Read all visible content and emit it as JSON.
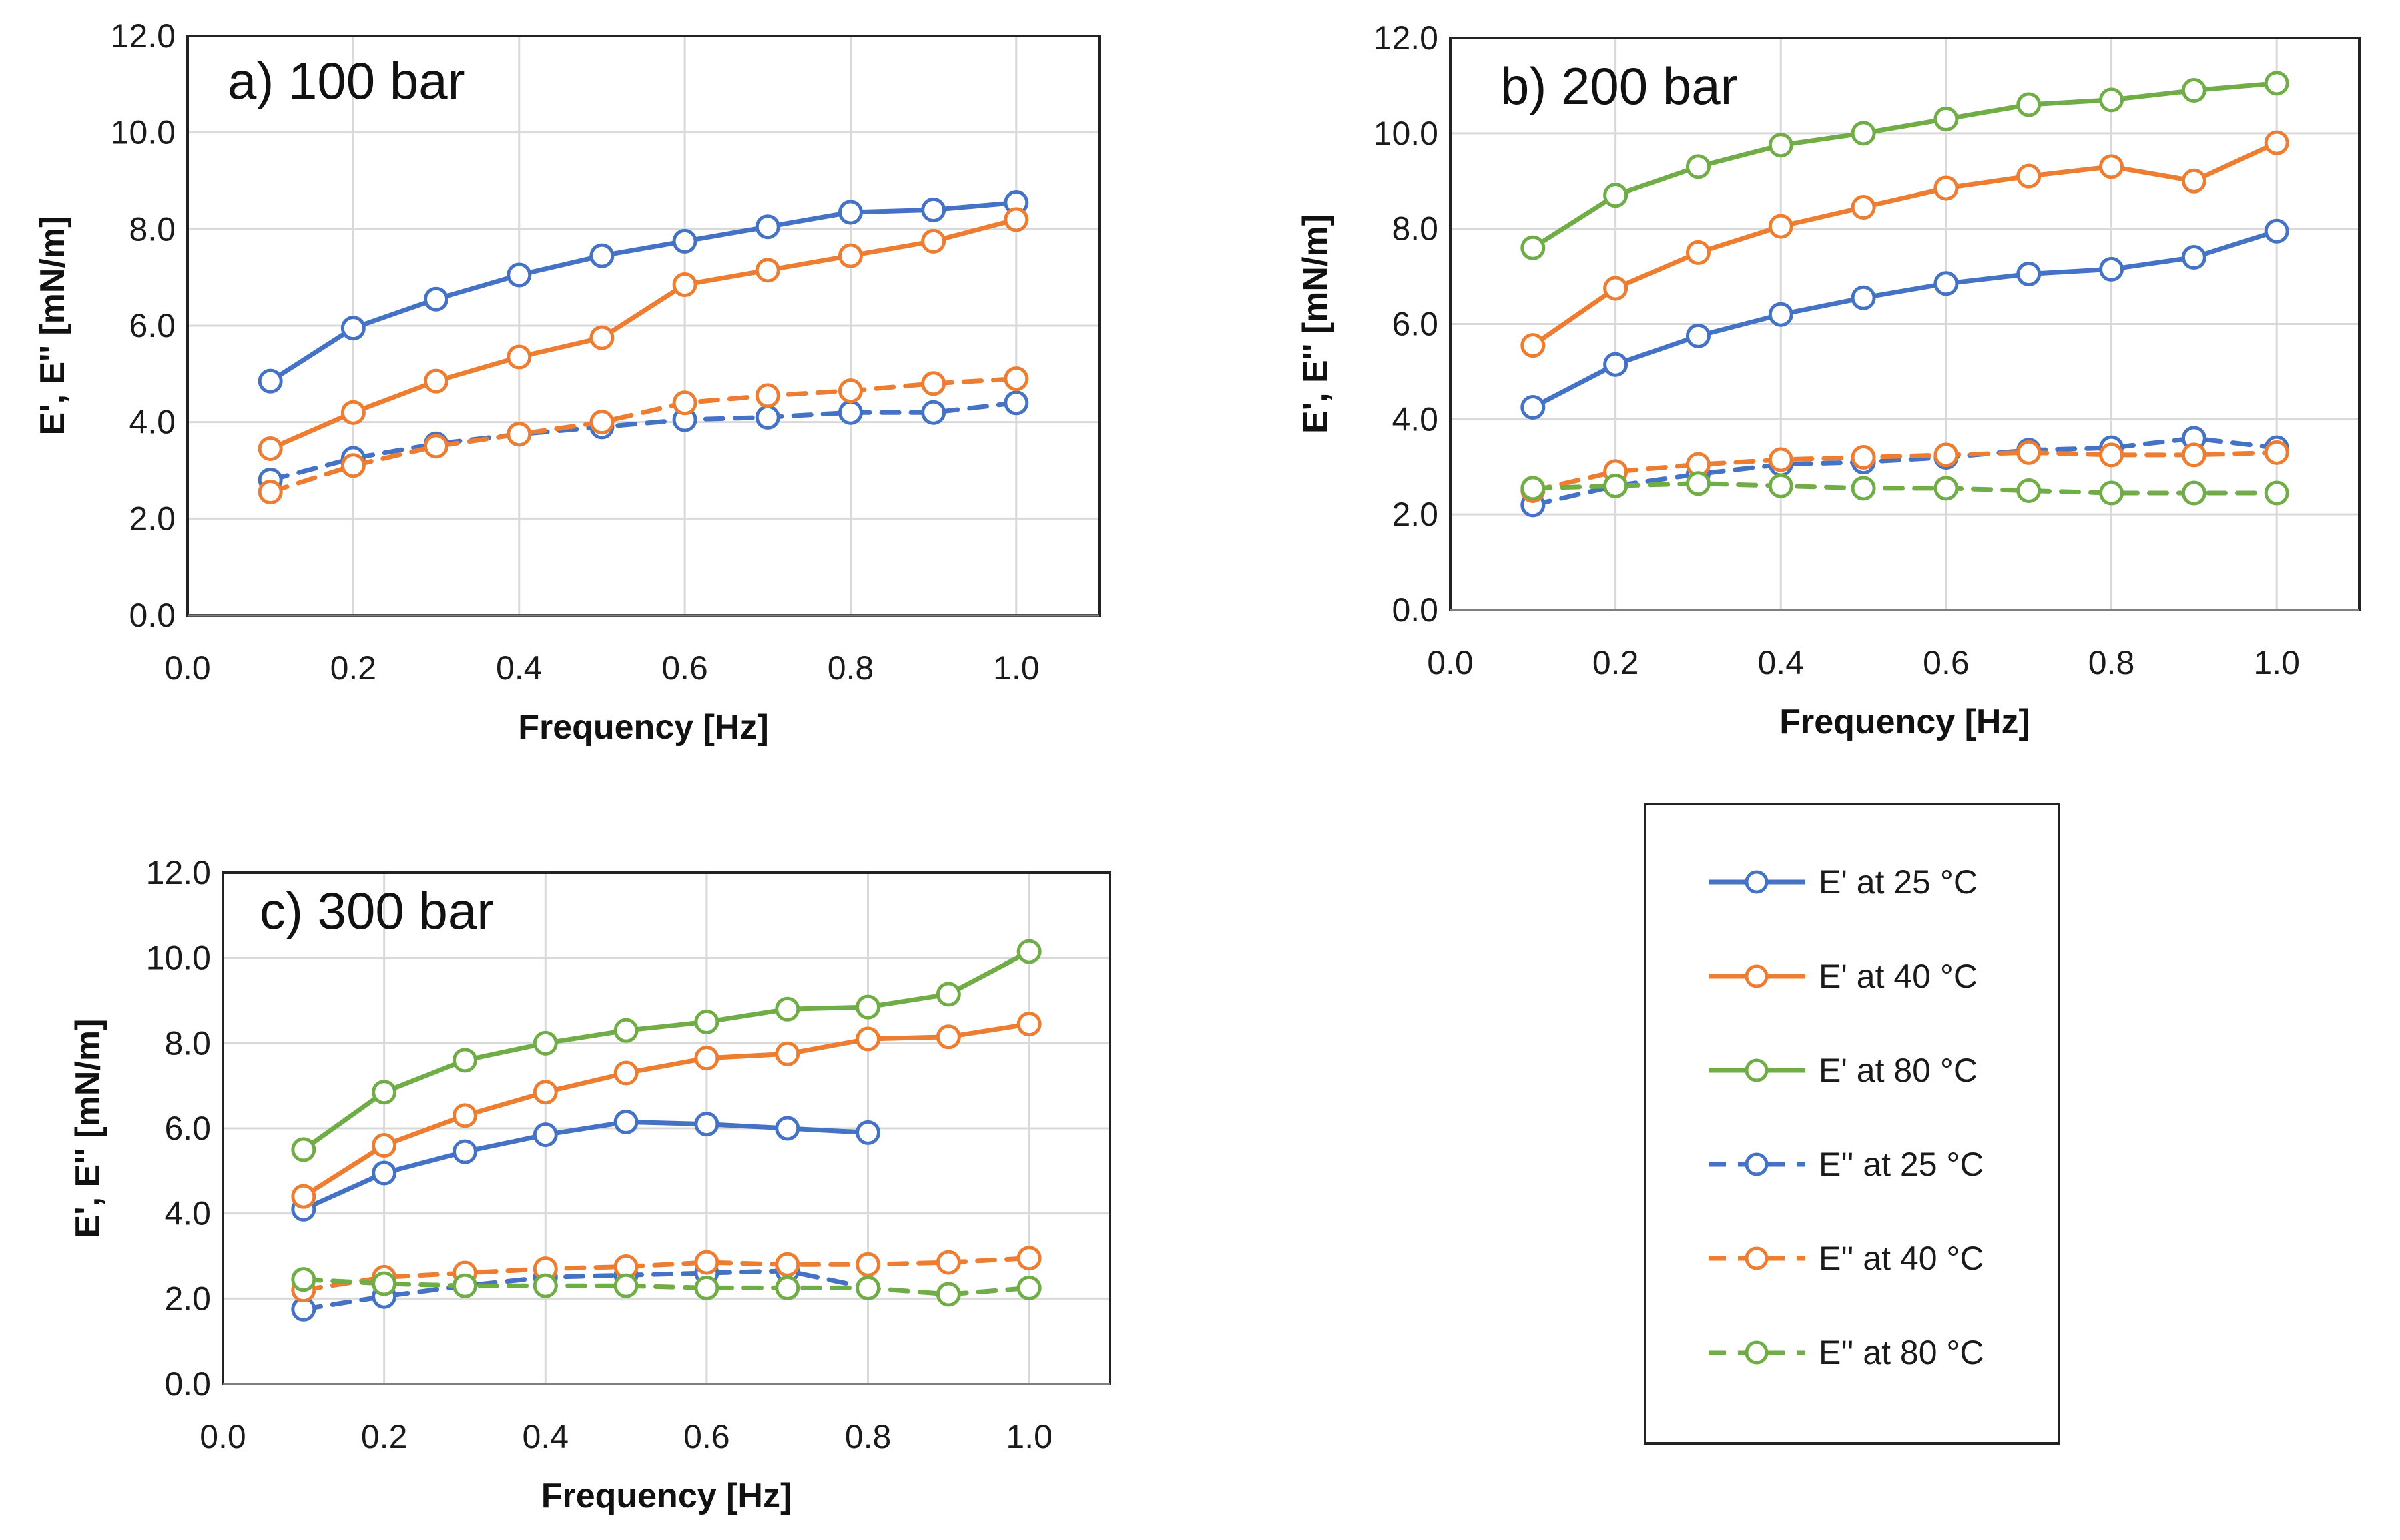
{
  "colors": {
    "25": "#4472C4",
    "40": "#ED7D31",
    "80": "#70AD47"
  },
  "chart_data": [
    {
      "type": "line",
      "panel_label": "a) 100 bar",
      "xlabel": "Frequency [Hz]",
      "ylabel": "E', E'' [mN/m]",
      "xlim": [
        0,
        1.1
      ],
      "ylim": [
        0,
        12
      ],
      "x_ticks": [
        "0.0",
        "0.2",
        "0.4",
        "0.6",
        "0.8",
        "1.0"
      ],
      "y_ticks": [
        "0.0",
        "2.0",
        "4.0",
        "6.0",
        "8.0",
        "10.0",
        "12.0"
      ],
      "grid": true,
      "series": [
        {
          "name": "E' at 25 °C",
          "color": "#4472C4",
          "style": "solid",
          "x": [
            0.1,
            0.2,
            0.3,
            0.4,
            0.5,
            0.6,
            0.7,
            0.8,
            0.9,
            1.0
          ],
          "y": [
            4.85,
            5.95,
            6.55,
            7.05,
            7.45,
            7.75,
            8.05,
            8.35,
            8.4,
            8.55
          ]
        },
        {
          "name": "E' at 40 °C",
          "color": "#ED7D31",
          "style": "solid",
          "x": [
            0.1,
            0.2,
            0.3,
            0.4,
            0.5,
            0.6,
            0.7,
            0.8,
            0.9,
            1.0
          ],
          "y": [
            3.45,
            4.2,
            4.85,
            5.35,
            5.75,
            6.85,
            7.15,
            7.45,
            7.75,
            8.2
          ]
        },
        {
          "name": "E'' at 25 °C",
          "color": "#4472C4",
          "style": "dashed",
          "x": [
            0.1,
            0.2,
            0.3,
            0.4,
            0.5,
            0.6,
            0.7,
            0.8,
            0.9,
            1.0
          ],
          "y": [
            2.8,
            3.25,
            3.55,
            3.75,
            3.9,
            4.05,
            4.1,
            4.2,
            4.2,
            4.4
          ]
        },
        {
          "name": "E'' at 40 °C",
          "color": "#ED7D31",
          "style": "dashed",
          "x": [
            0.1,
            0.2,
            0.3,
            0.4,
            0.5,
            0.6,
            0.7,
            0.8,
            0.9,
            1.0
          ],
          "y": [
            2.55,
            3.1,
            3.5,
            3.75,
            4.0,
            4.4,
            4.55,
            4.65,
            4.8,
            4.9
          ]
        }
      ]
    },
    {
      "type": "line",
      "panel_label": "b) 200 bar",
      "xlabel": "Frequency [Hz]",
      "ylabel": "E', E'' [mN/m]",
      "xlim": [
        0,
        1.1
      ],
      "ylim": [
        0,
        12
      ],
      "x_ticks": [
        "0.0",
        "0.2",
        "0.4",
        "0.6",
        "0.8",
        "1.0"
      ],
      "y_ticks": [
        "0.0",
        "2.0",
        "4.0",
        "6.0",
        "8.0",
        "10.0",
        "12.0"
      ],
      "grid": true,
      "series": [
        {
          "name": "E' at 25 °C",
          "color": "#4472C4",
          "style": "solid",
          "x": [
            0.1,
            0.2,
            0.3,
            0.4,
            0.5,
            0.6,
            0.7,
            0.8,
            0.9,
            1.0
          ],
          "y": [
            4.25,
            5.15,
            5.75,
            6.2,
            6.55,
            6.85,
            7.05,
            7.15,
            7.4,
            7.95
          ]
        },
        {
          "name": "E' at 40 °C",
          "color": "#ED7D31",
          "style": "solid",
          "x": [
            0.1,
            0.2,
            0.3,
            0.4,
            0.5,
            0.6,
            0.7,
            0.8,
            0.9,
            1.0
          ],
          "y": [
            5.55,
            6.75,
            7.5,
            8.05,
            8.45,
            8.85,
            9.1,
            9.3,
            9.0,
            9.8
          ]
        },
        {
          "name": "E' at 80 °C",
          "color": "#70AD47",
          "style": "solid",
          "x": [
            0.1,
            0.2,
            0.3,
            0.4,
            0.5,
            0.6,
            0.7,
            0.8,
            0.9,
            1.0
          ],
          "y": [
            7.6,
            8.7,
            9.3,
            9.75,
            10.0,
            10.3,
            10.6,
            10.7,
            10.9,
            11.05
          ]
        },
        {
          "name": "E'' at 25 °C",
          "color": "#4472C4",
          "style": "dashed",
          "x": [
            0.1,
            0.2,
            0.3,
            0.4,
            0.5,
            0.6,
            0.7,
            0.8,
            0.9,
            1.0
          ],
          "y": [
            2.2,
            2.6,
            2.85,
            3.05,
            3.1,
            3.2,
            3.35,
            3.4,
            3.6,
            3.4
          ]
        },
        {
          "name": "E'' at 40 °C",
          "color": "#ED7D31",
          "style": "dashed",
          "x": [
            0.1,
            0.2,
            0.3,
            0.4,
            0.5,
            0.6,
            0.7,
            0.8,
            0.9,
            1.0
          ],
          "y": [
            2.5,
            2.9,
            3.05,
            3.15,
            3.2,
            3.25,
            3.3,
            3.25,
            3.25,
            3.3
          ]
        },
        {
          "name": "E'' at 80 °C",
          "color": "#70AD47",
          "style": "dashed",
          "x": [
            0.1,
            0.2,
            0.3,
            0.4,
            0.5,
            0.6,
            0.7,
            0.8,
            0.9,
            1.0
          ],
          "y": [
            2.55,
            2.6,
            2.65,
            2.6,
            2.55,
            2.55,
            2.5,
            2.45,
            2.45,
            2.45
          ]
        }
      ]
    },
    {
      "type": "line",
      "panel_label": "c) 300 bar",
      "xlabel": "Frequency [Hz]",
      "ylabel": "E', E'' [mN/m]",
      "xlim": [
        0,
        1.1
      ],
      "ylim": [
        0,
        12
      ],
      "x_ticks": [
        "0.0",
        "0.2",
        "0.4",
        "0.6",
        "0.8",
        "1.0"
      ],
      "y_ticks": [
        "0.0",
        "2.0",
        "4.0",
        "6.0",
        "8.0",
        "10.0",
        "12.0"
      ],
      "grid": true,
      "series": [
        {
          "name": "E' at 25 °C",
          "color": "#4472C4",
          "style": "solid",
          "x": [
            0.1,
            0.2,
            0.3,
            0.4,
            0.5,
            0.6,
            0.7,
            0.8
          ],
          "y": [
            4.1,
            4.95,
            5.45,
            5.85,
            6.15,
            6.1,
            6.0,
            5.9
          ]
        },
        {
          "name": "E' at 40 °C",
          "color": "#ED7D31",
          "style": "solid",
          "x": [
            0.1,
            0.2,
            0.3,
            0.4,
            0.5,
            0.6,
            0.7,
            0.8,
            0.9,
            1.0
          ],
          "y": [
            4.4,
            5.6,
            6.3,
            6.85,
            7.3,
            7.65,
            7.75,
            8.1,
            8.15,
            8.45
          ]
        },
        {
          "name": "E' at 80 °C",
          "color": "#70AD47",
          "style": "solid",
          "x": [
            0.1,
            0.2,
            0.3,
            0.4,
            0.5,
            0.6,
            0.7,
            0.8,
            0.9,
            1.0
          ],
          "y": [
            5.5,
            6.85,
            7.6,
            8.0,
            8.3,
            8.5,
            8.8,
            8.85,
            9.15,
            10.15
          ]
        },
        {
          "name": "E'' at 25 °C",
          "color": "#4472C4",
          "style": "dashed",
          "x": [
            0.1,
            0.2,
            0.3,
            0.4,
            0.5,
            0.6,
            0.7,
            0.8
          ],
          "y": [
            1.75,
            2.05,
            2.3,
            2.5,
            2.55,
            2.6,
            2.65,
            2.25
          ]
        },
        {
          "name": "E'' at 40 °C",
          "color": "#ED7D31",
          "style": "dashed",
          "x": [
            0.1,
            0.2,
            0.3,
            0.4,
            0.5,
            0.6,
            0.7,
            0.8,
            0.9,
            1.0
          ],
          "y": [
            2.2,
            2.5,
            2.6,
            2.7,
            2.75,
            2.85,
            2.8,
            2.8,
            2.85,
            2.95
          ]
        },
        {
          "name": "E'' at 80 °C",
          "color": "#70AD47",
          "style": "dashed",
          "x": [
            0.1,
            0.2,
            0.3,
            0.4,
            0.5,
            0.6,
            0.7,
            0.8,
            0.9,
            1.0
          ],
          "y": [
            2.45,
            2.35,
            2.3,
            2.3,
            2.3,
            2.25,
            2.25,
            2.25,
            2.1,
            2.25
          ]
        }
      ]
    }
  ],
  "legend": {
    "placement": "lower-right",
    "items": [
      {
        "label": "E' at 25 °C",
        "color": "#4472C4",
        "style": "solid"
      },
      {
        "label": "E' at 40 °C",
        "color": "#ED7D31",
        "style": "solid"
      },
      {
        "label": "E' at 80 °C",
        "color": "#70AD47",
        "style": "solid"
      },
      {
        "label": "E'' at 25 °C",
        "color": "#4472C4",
        "style": "dashed"
      },
      {
        "label": "E'' at 40 °C",
        "color": "#ED7D31",
        "style": "dashed"
      },
      {
        "label": "E'' at 80 °C",
        "color": "#70AD47",
        "style": "dashed"
      }
    ]
  }
}
